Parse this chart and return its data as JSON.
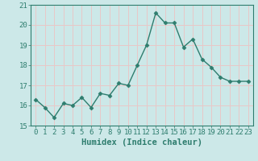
{
  "x": [
    0,
    1,
    2,
    3,
    4,
    5,
    6,
    7,
    8,
    9,
    10,
    11,
    12,
    13,
    14,
    15,
    16,
    17,
    18,
    19,
    20,
    21,
    22,
    23
  ],
  "y": [
    16.3,
    15.9,
    15.4,
    16.1,
    16.0,
    16.4,
    15.9,
    16.6,
    16.5,
    17.1,
    17.0,
    18.0,
    19.0,
    20.6,
    20.1,
    20.1,
    18.9,
    19.3,
    18.3,
    17.9,
    17.4,
    17.2,
    17.2,
    17.2
  ],
  "line_color": "#2e7d6e",
  "marker": "D",
  "markersize": 2.5,
  "linewidth": 1.0,
  "xlabel": "Humidex (Indice chaleur)",
  "xlabel_fontsize": 7.5,
  "xlabel_bold": true,
  "ylim": [
    15,
    21
  ],
  "xlim": [
    -0.5,
    23.5
  ],
  "yticks": [
    15,
    16,
    17,
    18,
    19,
    20,
    21
  ],
  "xticks": [
    0,
    1,
    2,
    3,
    4,
    5,
    6,
    7,
    8,
    9,
    10,
    11,
    12,
    13,
    14,
    15,
    16,
    17,
    18,
    19,
    20,
    21,
    22,
    23
  ],
  "bg_color": "#cce8e8",
  "grid_color": "#e8c8c8",
  "tick_label_fontsize": 6.5,
  "tick_color": "#2e7d6e",
  "spine_color": "#2e7d6e"
}
